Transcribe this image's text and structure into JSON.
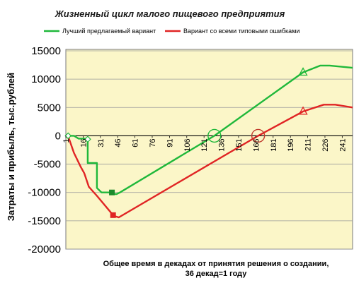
{
  "chart_data": {
    "type": "line",
    "title": "Жизненный цикл малого пищевого предприятия",
    "ylabel": "Затраты и прибыль, тыс.рублей",
    "xlabel_line1": "Общее время в декадах от принятия решения о создании,",
    "xlabel_line2": "36 декад=1 году",
    "ylim": [
      -20000,
      15000
    ],
    "xlim": [
      1,
      250
    ],
    "yticks": [
      "15000",
      "10000",
      "5000",
      "0",
      "-5000",
      "-10000",
      "-15000",
      "-20000"
    ],
    "ytick_values": [
      15000,
      10000,
      5000,
      0,
      -5000,
      -10000,
      -15000,
      -20000
    ],
    "xticks": [
      "1",
      "16",
      "31",
      "46",
      "61",
      "76",
      "91",
      "106",
      "121",
      "136",
      "151",
      "166",
      "181",
      "196",
      "211",
      "226",
      "241"
    ],
    "xtick_values": [
      1,
      16,
      31,
      46,
      61,
      76,
      91,
      106,
      121,
      136,
      151,
      166,
      181,
      196,
      211,
      226,
      241
    ],
    "grid": true,
    "legend_position": "top",
    "series": [
      {
        "name": "Лучший предлагаемый вариант",
        "color": "#1fb83a",
        "x": [
          1,
          3,
          8,
          12,
          16,
          20,
          20,
          28,
          28,
          32,
          41,
          41,
          45,
          48,
          130,
          207,
          222,
          230,
          250
        ],
        "y": [
          0,
          0,
          0,
          -500,
          -500,
          -500,
          -4800,
          -4800,
          -9200,
          -10000,
          -10000,
          -10300,
          -10300,
          -10000,
          0,
          11200,
          12400,
          12400,
          12000
        ]
      },
      {
        "name": "Вариант со всеми типовыми ошибками",
        "color": "#e02424",
        "x": [
          1,
          3,
          8,
          14,
          17,
          21,
          28,
          42,
          42,
          47,
          168,
          207,
          225,
          235,
          250
        ],
        "y": [
          0,
          -100,
          -3000,
          -5500,
          -6600,
          -9000,
          -10600,
          -14000,
          -14100,
          -14400,
          0,
          4300,
          5500,
          5500,
          5000
        ]
      }
    ],
    "markers": [
      {
        "series": 0,
        "x": 3,
        "y": 0,
        "shape": "diamond",
        "color": "#ffffff",
        "stroke": "#1fb83a"
      },
      {
        "series": 0,
        "x": 20,
        "y": -600,
        "shape": "diamond",
        "color": "#ffffff",
        "stroke": "#1fb83a"
      },
      {
        "series": 0,
        "x": 41,
        "y": -10000,
        "shape": "square",
        "color": "#1b8a2c",
        "stroke": "#1b8a2c"
      },
      {
        "series": 1,
        "x": 42,
        "y": -14000,
        "shape": "square",
        "color": "#e02424",
        "stroke": "#e02424"
      },
      {
        "series": 0,
        "x": 207,
        "y": 11200,
        "shape": "triangle",
        "color": "none",
        "stroke": "#1fb83a"
      },
      {
        "series": 1,
        "x": 207,
        "y": 4300,
        "shape": "triangle",
        "color": "none",
        "stroke": "#e02424"
      },
      {
        "series": 0,
        "x": 130,
        "y": 0,
        "shape": "circle",
        "color": "none",
        "stroke": "#1fb83a"
      },
      {
        "series": 1,
        "x": 168,
        "y": 0,
        "shape": "circle",
        "color": "none",
        "stroke": "#c0392b"
      }
    ],
    "colors": {
      "plot_background": "#fbf6c8",
      "plot_border": "#7a7a7a",
      "grid": "#9a9a9a",
      "zero_line": "#000000"
    }
  }
}
